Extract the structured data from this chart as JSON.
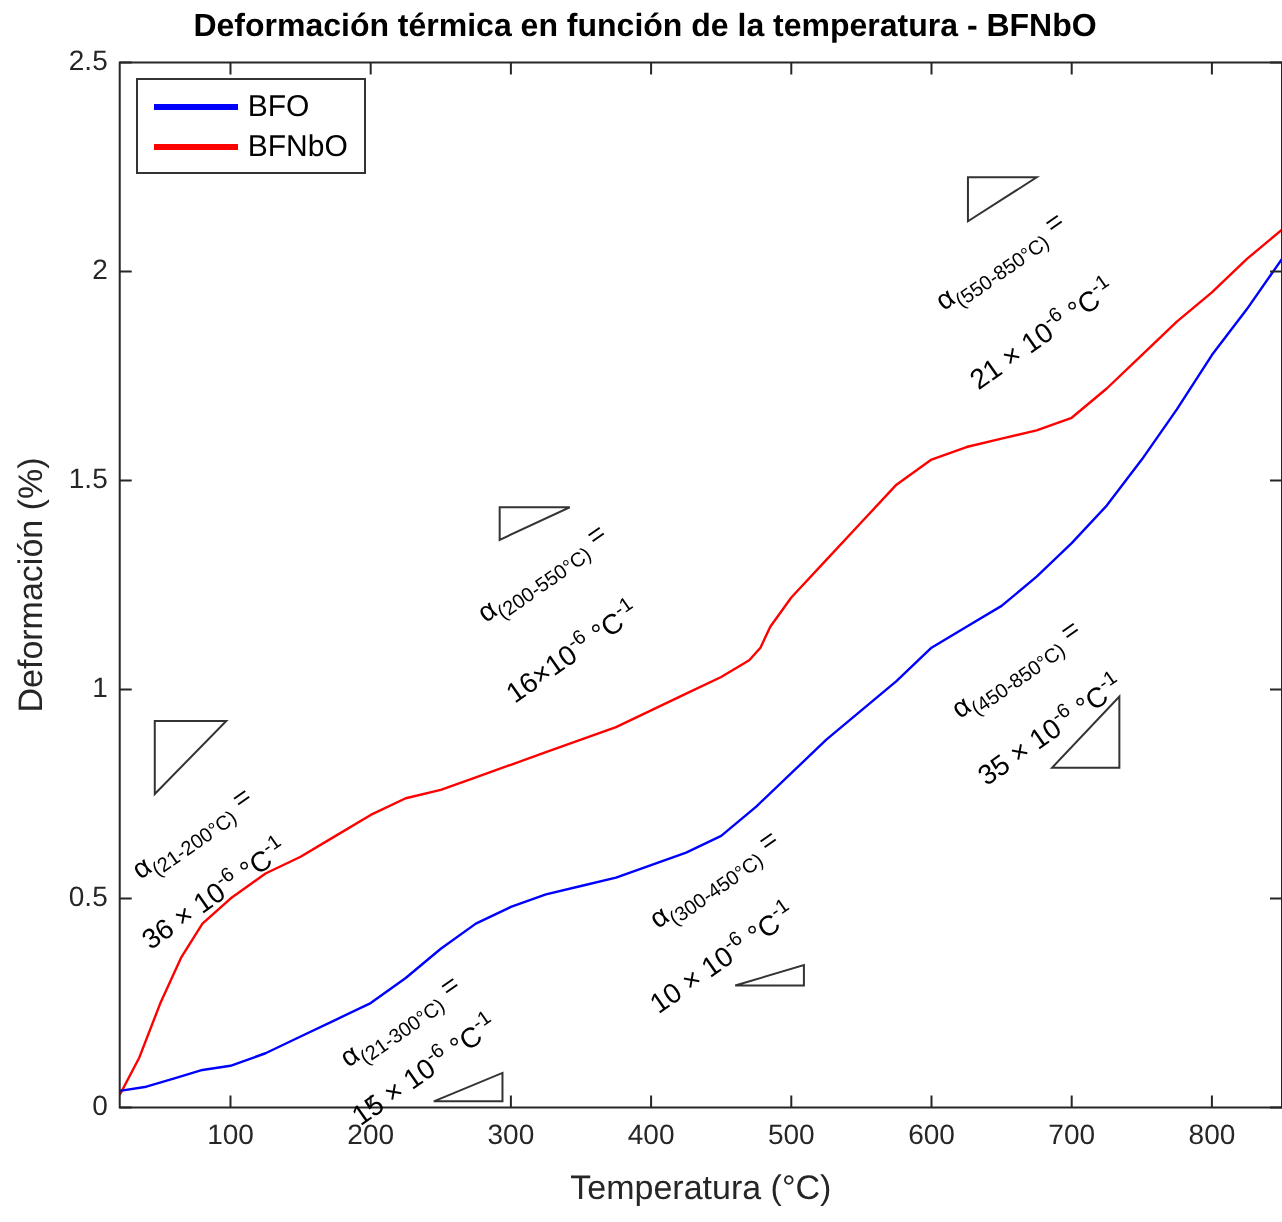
{
  "chart_data": {
    "type": "line",
    "title": "Deformación térmica en función de la temperatura - BFNbO",
    "xlabel": "Temperatura (°C)",
    "ylabel": "Deformación (%)",
    "xlim": [
      21,
      850
    ],
    "ylim": [
      0,
      2.5
    ],
    "xticks": [
      100,
      200,
      300,
      400,
      500,
      600,
      700,
      800
    ],
    "yticks": [
      0,
      0.5,
      1,
      1.5,
      2,
      2.5
    ],
    "grid": false,
    "legend": "top left",
    "marker": "none",
    "line_style": "solid",
    "series": [
      {
        "name": "BFO",
        "color": "#0000ff",
        "x": [
          21,
          40,
          60,
          80,
          100,
          125,
          150,
          175,
          200,
          225,
          250,
          275,
          300,
          325,
          350,
          375,
          400,
          425,
          450,
          475,
          500,
          525,
          550,
          575,
          600,
          625,
          650,
          675,
          700,
          725,
          750,
          775,
          800,
          825,
          850
        ],
        "values": [
          0.04,
          0.05,
          0.07,
          0.09,
          0.1,
          0.13,
          0.17,
          0.21,
          0.25,
          0.31,
          0.38,
          0.44,
          0.48,
          0.51,
          0.53,
          0.55,
          0.58,
          0.61,
          0.65,
          0.72,
          0.8,
          0.88,
          0.95,
          1.02,
          1.1,
          1.15,
          1.2,
          1.27,
          1.35,
          1.44,
          1.55,
          1.67,
          1.8,
          1.91,
          2.03
        ]
      },
      {
        "name": "BFNbO",
        "color": "#ff0000",
        "x": [
          21,
          35,
          50,
          65,
          80,
          100,
          125,
          150,
          175,
          200,
          225,
          250,
          275,
          300,
          325,
          350,
          375,
          400,
          425,
          450,
          470,
          478,
          485,
          500,
          525,
          550,
          575,
          600,
          625,
          650,
          675,
          700,
          725,
          750,
          775,
          800,
          825,
          850
        ],
        "values": [
          0.03,
          0.12,
          0.25,
          0.36,
          0.44,
          0.5,
          0.56,
          0.6,
          0.65,
          0.7,
          0.74,
          0.76,
          0.79,
          0.82,
          0.85,
          0.88,
          0.91,
          0.95,
          0.99,
          1.03,
          1.07,
          1.1,
          1.15,
          1.22,
          1.31,
          1.4,
          1.49,
          1.55,
          1.58,
          1.6,
          1.62,
          1.65,
          1.72,
          1.8,
          1.88,
          1.95,
          2.03,
          2.1
        ]
      }
    ],
    "annotations": [
      "α$_{(21-200°C)}$ =",
      "36 × 10$^{-6}$ °C$^{-1}$",
      "α$_{(21-300°C)}$ =",
      "15 × 10$^{-6}$ °C$^{-1}$",
      "α$_{(200-550°C)}$ =",
      "16×10$^{-6}$ °C$^{-1}$",
      "α$_{(300-450°C)}$ =",
      "10 × 10$^{-6}$ °C$^{-1}$",
      "α$_{(550-850°C)}$ =",
      "21 × 10$^{-6}$ °C$^{-1}$",
      "α$_{(450-850°C)}$ =",
      "35 × 10$^{-6}$ °C$^{-1}$"
    ]
  }
}
